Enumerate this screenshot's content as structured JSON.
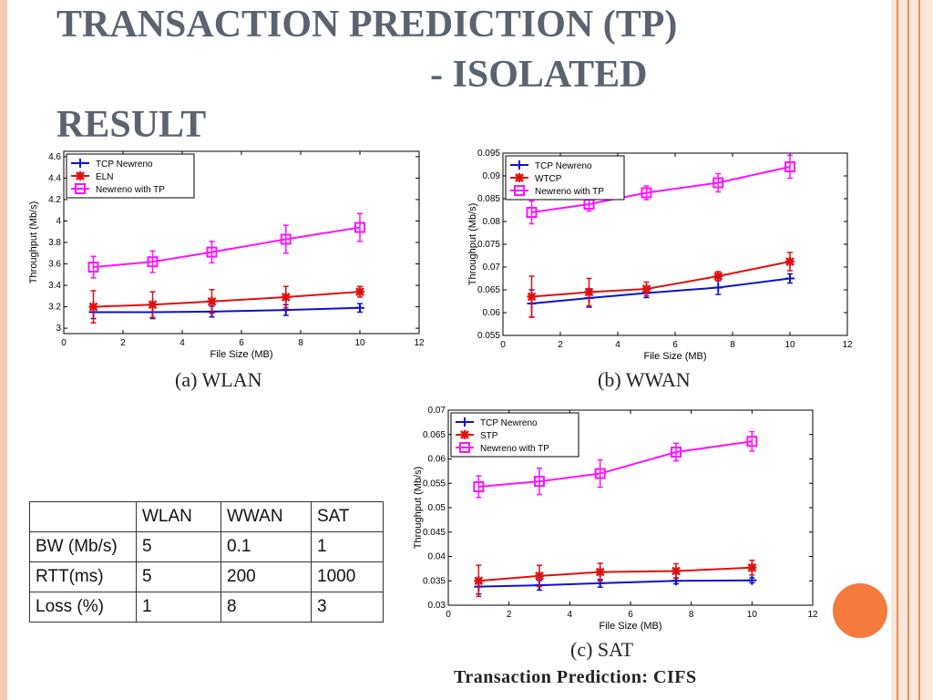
{
  "slide": {
    "title_line1": "TRANSACTION PREDICTION (TP)",
    "title_line2": "- ISOLATED",
    "title_line3": "RESULT",
    "footer": "Transaction Prediction: CIFS"
  },
  "table": {
    "header": [
      "",
      "WLAN",
      "WWAN",
      "SAT"
    ],
    "rows": [
      [
        "BW (Mb/s)",
        "5",
        "0.1",
        "1"
      ],
      [
        "RTT(ms)",
        "5",
        "200",
        "1000"
      ],
      [
        "Loss (%)",
        "1",
        "8",
        "3"
      ]
    ]
  },
  "chart_data": [
    {
      "type": "line",
      "caption": "(a) WLAN",
      "xlabel": "File Size (MB)",
      "ylabel": "Throughput (Mb/s)",
      "xlim": [
        0,
        12
      ],
      "ylim": [
        2.95,
        4.65
      ],
      "xticks": [
        0,
        2,
        4,
        6,
        8,
        10,
        12
      ],
      "yticks": [
        3,
        3.2,
        3.4,
        3.6,
        3.8,
        4,
        4.2,
        4.4,
        4.6
      ],
      "ytick_labels": [
        "3",
        "3.2",
        "3.4",
        "3.6",
        "3.8",
        "4",
        "4.2",
        "4.4",
        "4.6"
      ],
      "x": [
        1,
        3,
        5,
        7.5,
        10
      ],
      "legend_position": "top-left",
      "series": [
        {
          "name": "TCP Newreno",
          "color": "#1010d0",
          "marker": "plus",
          "values": [
            3.15,
            3.15,
            3.155,
            3.17,
            3.19
          ],
          "errors": [
            0.06,
            0.06,
            0.05,
            0.05,
            0.04
          ]
        },
        {
          "name": "ELN",
          "color": "#e01010",
          "marker": "star",
          "values": [
            3.2,
            3.22,
            3.25,
            3.29,
            3.34
          ],
          "errors": [
            0.15,
            0.12,
            0.11,
            0.1,
            0.05
          ]
        },
        {
          "name": "Newreno with TP",
          "color": "#ff10ff",
          "marker": "square",
          "values": [
            3.57,
            3.62,
            3.71,
            3.83,
            3.94
          ],
          "errors": [
            0.1,
            0.1,
            0.1,
            0.13,
            0.13
          ]
        }
      ]
    },
    {
      "type": "line",
      "caption": "(b) WWAN",
      "xlabel": "File Size (MB)",
      "ylabel": "Throughput (Mb/s)",
      "xlim": [
        0,
        12
      ],
      "ylim": [
        0.055,
        0.095
      ],
      "xticks": [
        0,
        2,
        4,
        6,
        8,
        10,
        12
      ],
      "yticks": [
        0.055,
        0.06,
        0.065,
        0.07,
        0.075,
        0.08,
        0.085,
        0.09,
        0.095
      ],
      "ytick_labels": [
        "0.055",
        "0.06",
        "0.065",
        "0.07",
        "0.075",
        "0.08",
        "0.085",
        "0.09",
        "0.095"
      ],
      "x": [
        1,
        3,
        5,
        7.5,
        10
      ],
      "legend_position": "top-left",
      "series": [
        {
          "name": "TCP Newreno",
          "color": "#1010d0",
          "marker": "plus",
          "values": [
            0.062,
            0.0632,
            0.0643,
            0.0655,
            0.0675
          ],
          "errors": [
            0.003,
            0.002,
            0.001,
            0.0015,
            0.001
          ]
        },
        {
          "name": "WTCP",
          "color": "#e01010",
          "marker": "star",
          "values": [
            0.0635,
            0.0645,
            0.0652,
            0.068,
            0.0712
          ],
          "errors": [
            0.0045,
            0.003,
            0.0015,
            0.001,
            0.002
          ]
        },
        {
          "name": "Newreno with TP",
          "color": "#ff10ff",
          "marker": "square",
          "values": [
            0.082,
            0.0838,
            0.0863,
            0.0885,
            0.092
          ],
          "errors": [
            0.0025,
            0.0015,
            0.0015,
            0.002,
            0.0025
          ]
        }
      ]
    },
    {
      "type": "line",
      "caption": "(c) SAT",
      "xlabel": "File Size (MB)",
      "ylabel": "Throughput (Mb/s)",
      "xlim": [
        0,
        12
      ],
      "ylim": [
        0.03,
        0.07
      ],
      "xticks": [
        0,
        2,
        4,
        6,
        8,
        10,
        12
      ],
      "yticks": [
        0.03,
        0.035,
        0.04,
        0.045,
        0.05,
        0.055,
        0.06,
        0.065,
        0.07
      ],
      "ytick_labels": [
        "0.03",
        "0.035",
        "0.04",
        "0.045",
        "0.05",
        "0.055",
        "0.06",
        "0.065",
        "0.07"
      ],
      "x": [
        1,
        3,
        5,
        7.5,
        10
      ],
      "legend_position": "top-left",
      "series": [
        {
          "name": "TCP Newreno",
          "color": "#1010d0",
          "marker": "plus",
          "values": [
            0.0338,
            0.0341,
            0.0345,
            0.035,
            0.0351
          ],
          "errors": [
            0.0015,
            0.001,
            0.0008,
            0.0006,
            0.0005
          ]
        },
        {
          "name": "STP",
          "color": "#e01010",
          "marker": "star",
          "values": [
            0.035,
            0.036,
            0.0368,
            0.037,
            0.0377
          ],
          "errors": [
            0.0032,
            0.0022,
            0.0018,
            0.0015,
            0.0015
          ]
        },
        {
          "name": "Newreno with TP",
          "color": "#ff10ff",
          "marker": "square",
          "values": [
            0.0543,
            0.0554,
            0.057,
            0.0614,
            0.0636
          ],
          "errors": [
            0.0022,
            0.0027,
            0.0028,
            0.0018,
            0.002
          ]
        }
      ]
    }
  ]
}
